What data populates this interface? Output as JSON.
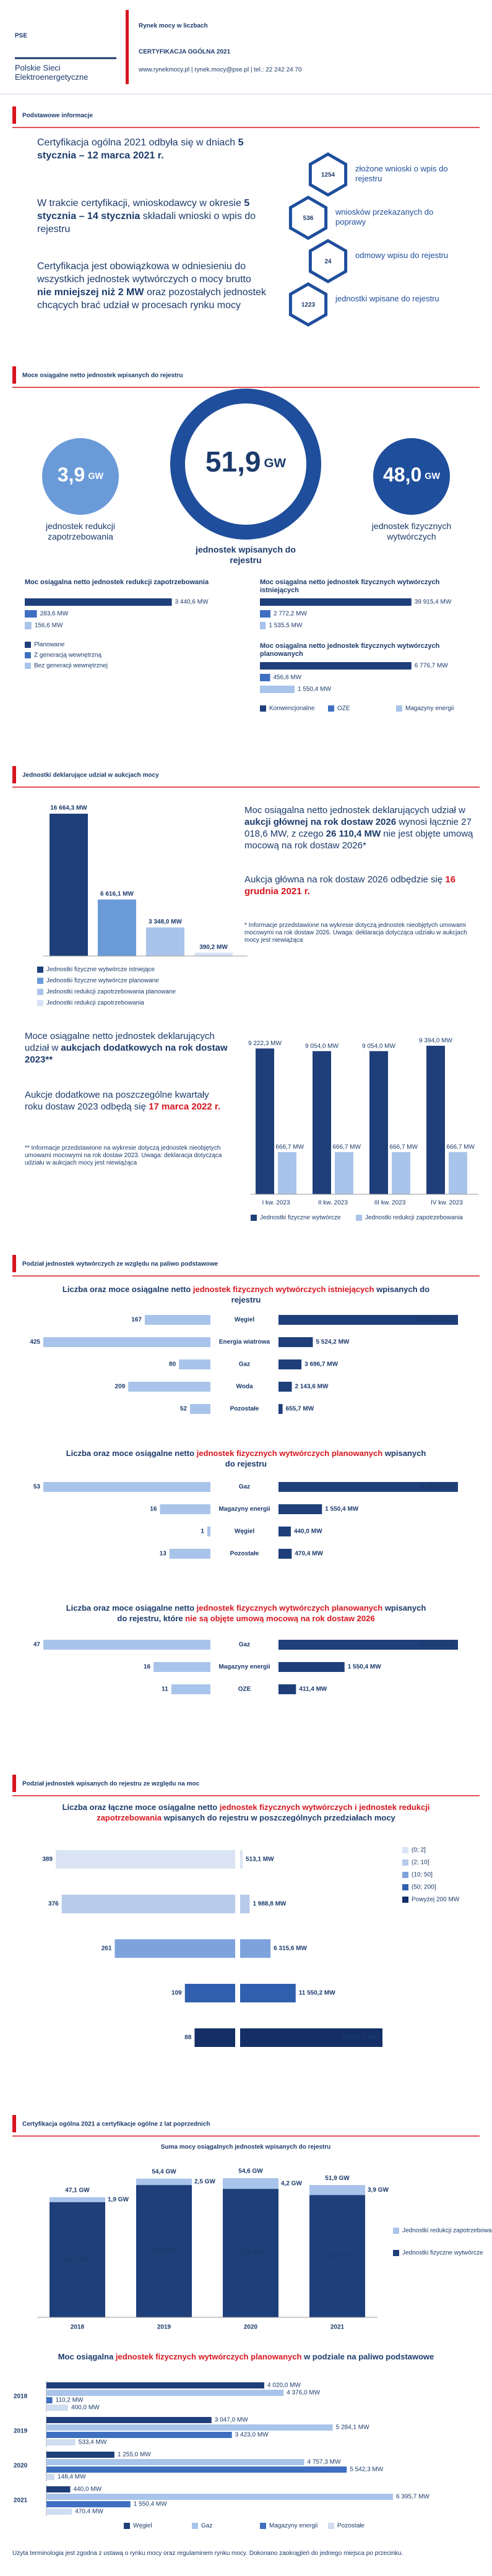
{
  "header": {
    "logo": "PSE",
    "company": "Polskie Sieci Elektroenergetyczne",
    "title": "Rynek mocy w liczbach",
    "subtitle": "CERTYFIKACJA OGÓLNA 2021",
    "contact": "www.rynekmocy.pl | rynek.mocy@pse.pl | tel.: 22 242 24 70"
  },
  "headings": [
    "Podstawowe informacje",
    "Moce osiągalne netto jednostek wpisanych do rejestru",
    "Jednostki deklarujące udział w aukcjach mocy",
    "Podział jednostek wytwórczych ze względu na paliwo podstawowe",
    "Podział jednostek wpisanych do rejestru ze względu na moc",
    "Certyfikacja ogólna 2021 a certyfikacje ogólne z lat poprzednich"
  ],
  "basic_info": {
    "paragraphs": [
      [
        {
          "text": "Certyfikacja ogólna 2021 odbyła się w dniach"
        },
        {
          "text": "5 stycznia – 12 marca 2021 r.",
          "style": "bold"
        }
      ],
      [
        {
          "text": "W trakcie certyfikacji, wnioskodawcy w okresie"
        },
        {
          "text": "5 stycznia – 14 stycznia",
          "style": "bold"
        },
        {
          "text": "składali wnioski o wpis do rejestru"
        }
      ],
      [
        {
          "text": "Certyfikacja jest obowiązkowa w odniesieniu do wszystkich jednostek wytwórczych o mocy brutto"
        },
        {
          "text": "nie mniejszej niż 2 MW",
          "style": "bold"
        },
        {
          "text": "oraz pozostałych jednostek chcących brać udział w procesach rynku mocy"
        }
      ]
    ],
    "stats": [
      {
        "value": "1254",
        "label": "złożone wnioski o wpis do rejestru"
      },
      {
        "value": "536",
        "label": "wniosków przekazanych do poprawy"
      },
      {
        "value": "24",
        "label": "odmowy wpisu do rejestru"
      },
      {
        "value": "1223",
        "label": "jednostki wpisane do rejestru"
      }
    ]
  },
  "capacity": {
    "circles": [
      {
        "value": "3,9",
        "unit": "GW",
        "label": "jednostek redukcji zapotrzebowania"
      },
      {
        "value": "51,9",
        "unit": "GW",
        "label": "jednostek wpisanych do rejestru"
      },
      {
        "value": "48,0",
        "unit": "GW",
        "label": "jednostek fizycznych wytwórczych"
      }
    ]
  },
  "auctions": {
    "main_text": [
      [
        {
          "text": "Moc osiągalna netto jednostek deklarujących udział w"
        },
        {
          "text": "aukcji głównej na rok dostaw 2026",
          "style": "bold"
        },
        {
          "text": "wynosi łącznie 27 018,6 MW, z czego"
        },
        {
          "text": "26 110,4 MW",
          "style": "bold"
        },
        {
          "text": "nie jest objęte umową mocową na rok dostaw 2026*"
        }
      ],
      [
        {
          "text": "Aukcja główna na rok dostaw 2026 odbędzie się"
        },
        {
          "text": "16 grudnia 2021 r.",
          "style": "red"
        }
      ]
    ],
    "main_note": "* Informacje przedstawione na wykresie dotyczą jednostek nieobjętych umowami mocowymi na rok dostaw 2026. Uwaga: deklaracja dotycząca udziału w aukcjach mocy jest niewiążąca",
    "extra_text": [
      [
        {
          "text": "Moce osiągalne netto jednostek deklarujących udział w"
        },
        {
          "text": "aukcjach dodatkowych na rok dostaw 2023**",
          "style": "bold"
        }
      ],
      [
        {
          "text": "Aukcje dodatkowe na poszczególne kwartały roku dostaw 2023 odbędą się"
        },
        {
          "text": "17 marca 2022 r.",
          "style": "red"
        }
      ]
    ],
    "extra_note": "** Informacje przedstawione na wykresie dotyczą jednostek nieobjętych umowami mocowymi na rok dostaw 2023. Uwaga: deklaracja dotycząca udziału w aukcjach mocy jest niewiążąca"
  },
  "chart_data": [
    {
      "type": "hbar_groups",
      "legend": "vertical",
      "categories": [
        "Planowane",
        "Z generacją wewnętrzną",
        "Bez generacji wewnętrznej"
      ],
      "colors": [
        "#1f3f7a",
        "#3f6fc0",
        "#a9c4ea"
      ],
      "groups": [
        {
          "title": "Moc osiągalna netto jednostek redukcji zapotrzebowania",
          "values": [
            3440.6,
            283.6,
            156.6
          ],
          "value_labels": [
            "3 440,6 MW",
            "283,6 MW",
            "156,6 MW"
          ]
        }
      ]
    },
    {
      "type": "hbar_groups",
      "legend": "horizontal",
      "categories": [
        "Konwencjonalne",
        "OZE",
        "Magazyny energii"
      ],
      "colors": [
        "#1f3f7a",
        "#3f6fc0",
        "#a9c4ea"
      ],
      "groups": [
        {
          "title": "Moc osiągalna netto jednostek fizycznych wytwórczych istniejących",
          "values": [
            39915.4,
            2772.2,
            1535.5
          ],
          "value_labels": [
            "39 915,4 MW",
            "2 772,2 MW",
            "1 535,5 MW"
          ]
        },
        {
          "title": "Moc osiągalna netto jednostek fizycznych wytwórczych planowanych",
          "values": [
            6776.7,
            456.8,
            1550.4
          ],
          "value_labels": [
            "6 776,7 MW",
            "456,8 MW",
            "1 550,4 MW"
          ]
        }
      ]
    },
    {
      "type": "bar",
      "categories": [
        "Jednostki fizyczne wytwórcze istniejące",
        "Jednostki fizyczne wytwórcze planowane",
        "Jednostki redukcji zapotrzebowania planowane",
        "Jednostki redukcji zapotrzebowania"
      ],
      "values": [
        16664.3,
        6616.1,
        3348.0,
        390.2
      ],
      "value_labels": [
        "16 664,3 MW",
        "6 616,1 MW",
        "3 348,0 MW",
        "390,2 MW"
      ],
      "colors": [
        "#1f3f7a",
        "#6a9bd8",
        "#a9c4ea",
        "#d6e2f5"
      ]
    },
    {
      "type": "grouped_bar",
      "categories": [
        "I kw. 2023",
        "II kw. 2023",
        "III kw. 2023",
        "IV kw. 2023"
      ],
      "series": [
        {
          "name": "Jednostki fizyczne wytwórcze",
          "color": "#1f3f7a",
          "values": [
            9222.3,
            9054.0,
            9054.0,
            9394.0
          ],
          "value_labels": [
            "9 222,3 MW",
            "9 054,0 MW",
            "9 054,0 MW",
            "9 394,0 MW"
          ]
        },
        {
          "name": "Jednostki redukcji zapotrzebowania",
          "color": "#a9c4ea",
          "values": [
            2666.7,
            2666.7,
            2666.7,
            2666.7
          ],
          "value_labels": [
            "2 666,7 MW",
            "2 666,7 MW",
            "2 666,7 MW",
            "2 666,7 MW"
          ]
        }
      ]
    },
    {
      "type": "butterfly",
      "title": [
        {
          "text": "Liczba oraz moce osiągalne netto"
        },
        {
          "text": "jednostek fizycznych wytwórczych istniejących",
          "style": "red"
        },
        {
          "text": "wpisanych do rejestru"
        }
      ],
      "categories": [
        "Węgiel",
        "Energia wiatrowa",
        "Gaz",
        "Woda",
        "Pozostałe"
      ],
      "counts": [
        167,
        425,
        80,
        209,
        52
      ],
      "values": [
        28885.9,
        5524.2,
        3696.7,
        2143.6,
        655.7
      ],
      "value_labels": [
        "28 885,9 MW",
        "5 524,2 MW",
        "3 696,7 MW",
        "2 143,6 MW",
        "655,7 MW"
      ],
      "colors": {
        "counts": "#a9c4ea",
        "values": "#1f3f7a"
      }
    },
    {
      "type": "butterfly",
      "title": [
        {
          "text": "Liczba oraz moce osiągalne netto"
        },
        {
          "text": "jednostek fizycznych wytwórczych planowanych",
          "style": "red"
        },
        {
          "text": "wpisanych do rejestru"
        }
      ],
      "categories": [
        "Gaz",
        "Magazyny energii",
        "Węgiel",
        "Pozostałe"
      ],
      "counts": [
        53,
        16,
        1,
        13
      ],
      "values": [
        6395.7,
        1550.4,
        440.0,
        470.4
      ],
      "value_labels": [
        "6 395,7 MW",
        "1 550,4 MW",
        "440,0 MW",
        "470,4 MW"
      ],
      "colors": {
        "counts": "#a9c4ea",
        "values": "#1f3f7a"
      }
    },
    {
      "type": "butterfly",
      "title": [
        {
          "text": "Liczba oraz moce osiągalne netto"
        },
        {
          "text": "jednostek fizycznych wytwórczych planowanych",
          "style": "red"
        },
        {
          "text": "wpisanych do rejestru, które"
        },
        {
          "text": "nie są objęte umową mocową na rok dostaw 2026",
          "style": "red"
        }
      ],
      "categories": [
        "Gaz",
        "Magazyny energii",
        "OZE"
      ],
      "counts": [
        47,
        16,
        11
      ],
      "values": [
        4212.5,
        1550.4,
        411.4
      ],
      "value_labels": [
        "4 212,5 MW",
        "1 550,4 MW",
        "411,4 MW"
      ],
      "colors": {
        "counts": "#a9c4ea",
        "values": "#1f3f7a"
      }
    },
    {
      "type": "butterfly_legend",
      "title": [
        {
          "text": "Liczba oraz łączne moce osiągalne netto"
        },
        {
          "text": "jednostek fizycznych wytwórczych i jednostek redukcji zapotrzebowania",
          "style": "red"
        },
        {
          "text": "wpisanych do rejestru w poszczególnych przedziałach mocy"
        }
      ],
      "categories": [
        "(0; 2]",
        "(2; 10]",
        "(10; 50]",
        "(50; 200]",
        "Powyżej 200 MW"
      ],
      "counts": [
        389,
        376,
        261,
        109,
        88
      ],
      "values": [
        513.1,
        1988.8,
        6315.6,
        11550.2,
        29591.7
      ],
      "value_labels": [
        "513,1 MW",
        "1 988,8 MW",
        "6 315,6 MW",
        "11 550,2 MW",
        "29 591,7 MW"
      ],
      "colors": [
        "#dbe4f4",
        "#b7cbeb",
        "#7ea3dc",
        "#2f5fae",
        "#132f66"
      ]
    },
    {
      "type": "stacked_bar",
      "title": "Suma mocy osiągalnych jednostek wpisanych do rejestru",
      "categories": [
        "2018",
        "2019",
        "2020",
        "2021"
      ],
      "series": [
        {
          "name": "Jednostki fizyczne wytwórcze",
          "color": "#1f3f7a",
          "values": [
            45.2,
            51.9,
            50.4,
            48.0
          ],
          "value_labels": [
            "45,2 GW",
            "51,9 GW",
            "50,4 GW",
            "48,0 GW"
          ]
        },
        {
          "name": "Jednostki redukcji zapotrzebowania",
          "color": "#a9c4ea",
          "values": [
            1.9,
            2.5,
            4.2,
            3.9
          ],
          "value_labels": [
            "1,9 GW",
            "2,5 GW",
            "4,2 GW",
            "3,9 GW"
          ]
        }
      ],
      "total_labels": [
        "47,1 GW",
        "54,4 GW",
        "54,6 GW",
        "51,9 GW"
      ]
    },
    {
      "type": "grouped_hbar",
      "title": [
        {
          "text": "Moc osiągalna"
        },
        {
          "text": "jednostek fizycznych wytwórczych planowanych",
          "style": "red"
        },
        {
          "text": "w podziale na paliwo podstawowe"
        }
      ],
      "categories": [
        "2018",
        "2019",
        "2020",
        "2021"
      ],
      "series": [
        {
          "name": "Węgiel",
          "color": "#1f3f7a",
          "values": [
            4020.0,
            3047.0,
            1255.0,
            440.0
          ],
          "value_labels": [
            "4 020,0 MW",
            "3 047,0 MW",
            "1 255,0 MW",
            "440,0 MW"
          ]
        },
        {
          "name": "Gaz",
          "color": "#a9c4ea",
          "values": [
            4376.0,
            5284.1,
            4757.3,
            6395.7
          ],
          "value_labels": [
            "4 376,0 MW",
            "5 284,1 MW",
            "4 757,3 MW",
            "6 395,7 MW"
          ]
        },
        {
          "name": "Magazyny energii",
          "color": "#3f6fc0",
          "values": [
            110.2,
            3423.0,
            5542.3,
            1550.4
          ],
          "value_labels": [
            "110,2 MW",
            "3 423,0 MW",
            "5 542,3 MW",
            "1 550,4 MW"
          ]
        },
        {
          "name": "Pozostałe",
          "color": "#d0dcf0",
          "values": [
            400.0,
            533.4,
            148.4,
            470.4
          ],
          "value_labels": [
            "400,0 MW",
            "533,4 MW",
            "148,4 MW",
            "470,4 MW"
          ]
        }
      ]
    }
  ],
  "footer": "Użyta terminologia jest zgodna z ustawą o rynku mocy oraz regulaminem rynku mocy. Dokonano zaokrągleń do jednego miejsca po przecinku."
}
